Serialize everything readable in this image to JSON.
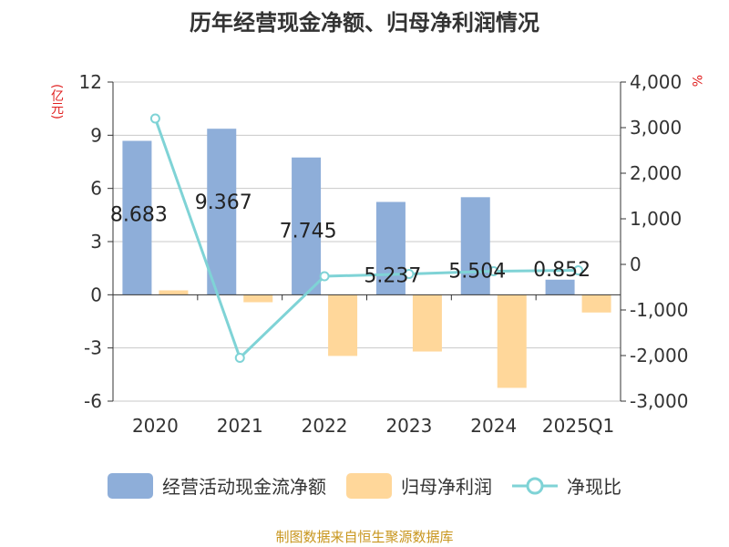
{
  "chart_data": {
    "type": "bar",
    "title": "历年经营现金净额、归母净利润情况",
    "categories": [
      "2020",
      "2021",
      "2022",
      "2023",
      "2024",
      "2025Q1"
    ],
    "series": [
      {
        "name": "经营活动现金流净额",
        "type": "bar",
        "axis": "left",
        "color": "#8eaed9",
        "values": [
          8.683,
          9.367,
          7.745,
          5.237,
          5.504,
          0.852
        ]
      },
      {
        "name": "归母净利润",
        "type": "bar",
        "axis": "left",
        "color": "#ffd79a",
        "values": [
          0.25,
          -0.42,
          -3.45,
          -3.2,
          -5.25,
          -1.0
        ]
      },
      {
        "name": "净现比",
        "type": "line",
        "axis": "right",
        "color": "#7fd3d6",
        "values": [
          3200,
          -2050,
          -260,
          -210,
          -150,
          -130
        ]
      }
    ],
    "data_labels": [
      "8.683",
      "9.367",
      "7.745",
      "5.237",
      "5.504",
      "0.852"
    ],
    "left_axis": {
      "unit": "(亿元)",
      "ylim": [
        -6,
        12
      ],
      "ticks": [
        -6,
        -3,
        0,
        3,
        6,
        9,
        12
      ],
      "tick_labels": [
        "-6",
        "-3",
        "0",
        "3",
        "6",
        "9",
        "12"
      ]
    },
    "right_axis": {
      "unit": "%",
      "ylim": [
        -3000,
        4000
      ],
      "ticks": [
        -3000,
        -2000,
        -1000,
        0,
        1000,
        2000,
        3000,
        4000
      ],
      "tick_labels": [
        "-3,000",
        "-2,000",
        "-1,000",
        "0",
        "1,000",
        "2,000",
        "3,000",
        "4,000"
      ]
    },
    "grid": true,
    "legend_position": "bottom"
  },
  "legend": {
    "items": [
      "经营活动现金流净额",
      "归母净利润",
      "净现比"
    ]
  },
  "source": "制图数据来自恒生聚源数据库"
}
